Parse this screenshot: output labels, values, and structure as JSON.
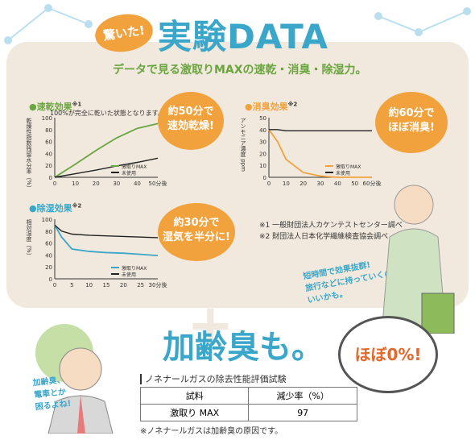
{
  "header": {
    "badge": "驚いた!",
    "title": "実験DATA",
    "subtitle": "データで見る激取りMAXの速乾・消臭・除湿力。"
  },
  "colors": {
    "green": "#6aa53f",
    "orange": "#f2a23d",
    "blue": "#3aa6c9",
    "black": "#222222",
    "panel": "#f1e9dd"
  },
  "charts": {
    "dry": {
      "title": "●速乾効果",
      "sup": "※1",
      "note": "100%が完全に乾いた状態となります。",
      "bubble": "約50分で\n速効乾燥!",
      "ylabel": "乾燥性指数残留水分率（%）"
    },
    "odor": {
      "title": "●消臭効果",
      "sup": "※2",
      "bubble": "約60分で\nほぼ消臭!",
      "ylabel": "アンモニア濃度 ppm"
    },
    "humid": {
      "title": "●除湿効果",
      "sup": "※2",
      "bubble": "約30分で\n湿気を半分に!",
      "ylabel": "相対湿度（%）"
    }
  },
  "legend": {
    "product": "激取りMAX",
    "unused": "未使用"
  },
  "footnotes": {
    "f1": "※1 一般財団法人カケンテストセンター調べ",
    "f2": "※2 財団法人日本化学繊維検査協会調べ"
  },
  "side_note": "短時間で効果抜群!\n旅行などに持っていくのも\nいいかも。",
  "bottom": {
    "plus": "+",
    "headline": "加齢臭も。",
    "bubble": "ほぼ0%!",
    "person_note": "加齢臭、\n電車とか\n困るよね!",
    "table_title": "ノネナールガスの除去性能評価試験",
    "table_headers": [
      "試料",
      "減少率（%）"
    ],
    "table_rows": [
      [
        "激取り MAX",
        "97"
      ]
    ],
    "table_note": "※ノネナールガスは加齢臭の原因です。"
  },
  "chart_data": [
    {
      "type": "line",
      "title": "●速乾効果",
      "xlabel": "",
      "ylabel": "乾燥性指数残留水分率（%）",
      "x": [
        0,
        10,
        20,
        30,
        40,
        50
      ],
      "x_tick_labels": [
        "0",
        "10",
        "20",
        "30",
        "40",
        "50分後"
      ],
      "y_ticks": [
        0,
        20,
        40,
        60,
        80,
        100
      ],
      "ylim": [
        0,
        100
      ],
      "series": [
        {
          "name": "激取りMAX",
          "color": "#6aa53f",
          "values": [
            0,
            22,
            45,
            66,
            82,
            90
          ]
        },
        {
          "name": "未使用",
          "color": "#222222",
          "values": [
            0,
            6,
            12,
            19,
            25,
            32
          ]
        }
      ]
    },
    {
      "type": "line",
      "title": "●消臭効果",
      "xlabel": "",
      "ylabel": "アンモニア濃度 ppm",
      "x": [
        0,
        5,
        10,
        20,
        30,
        40,
        50,
        60
      ],
      "x_tick_labels": [
        "0",
        "10",
        "20",
        "30",
        "40",
        "50",
        "60分後"
      ],
      "x_ticks": [
        0,
        10,
        20,
        30,
        40,
        50,
        60
      ],
      "y_ticks": [
        0,
        10,
        20,
        30,
        40,
        50
      ],
      "ylim": [
        0,
        50
      ],
      "series": [
        {
          "name": "激取りMAX",
          "color": "#f2a23d",
          "values": [
            40,
            30,
            15,
            4,
            1,
            0,
            0,
            0
          ]
        },
        {
          "name": "未使用",
          "color": "#222222",
          "values": [
            40,
            40,
            39,
            39,
            39,
            39,
            39,
            39
          ]
        }
      ]
    },
    {
      "type": "line",
      "title": "●除湿効果",
      "xlabel": "",
      "ylabel": "相対湿度（%）",
      "x": [
        0,
        2,
        5,
        10,
        15,
        20,
        25,
        30
      ],
      "x_tick_labels": [
        "0",
        "5",
        "10",
        "15",
        "20",
        "25",
        "30分後"
      ],
      "x_ticks": [
        0,
        5,
        10,
        15,
        20,
        25,
        30
      ],
      "y_ticks": [
        0,
        20,
        40,
        60,
        80,
        100
      ],
      "ylim": [
        0,
        100
      ],
      "series": [
        {
          "name": "激取りMAX",
          "color": "#3aa6c9",
          "values": [
            90,
            70,
            50,
            46,
            44,
            43,
            41,
            39
          ]
        },
        {
          "name": "未使用",
          "color": "#222222",
          "values": [
            90,
            80,
            75,
            73,
            72,
            71,
            70,
            69
          ]
        }
      ]
    }
  ]
}
